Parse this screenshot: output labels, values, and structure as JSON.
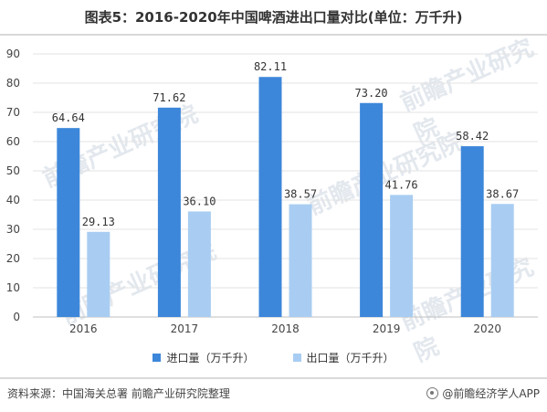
{
  "title": "图表5：2016-2020年中国啤酒进出口量对比(单位：万千升)",
  "colors": {
    "import": "#3d87da",
    "export": "#a9cdf2",
    "grid": "#e3e3e3",
    "axis": "#bfbfbf"
  },
  "watermark_text": "前瞻产业研究院",
  "chart_data": {
    "type": "bar",
    "categories": [
      "2016",
      "2017",
      "2018",
      "2019",
      "2020"
    ],
    "series": [
      {
        "name": "进口量（万千升）",
        "values": [
          64.64,
          71.62,
          82.11,
          73.2,
          58.42
        ],
        "labels": [
          "64.64",
          "71.62",
          "82.11",
          "73.20",
          "58.42"
        ]
      },
      {
        "name": "出口量（万千升）",
        "values": [
          29.13,
          36.1,
          38.57,
          41.76,
          38.67
        ],
        "labels": [
          "29.13",
          "36.10",
          "38.57",
          "41.76",
          "38.67"
        ]
      }
    ],
    "ylim": [
      0,
      90
    ],
    "yticks": [
      "0",
      "10",
      "20",
      "30",
      "40",
      "50",
      "60",
      "70",
      "80",
      "90"
    ],
    "grid": true,
    "legend": "bottom"
  },
  "footer": {
    "source": "资料来源：中国海关总署 前瞻产业研究院整理",
    "brand": "@前瞻经济学人APP"
  }
}
